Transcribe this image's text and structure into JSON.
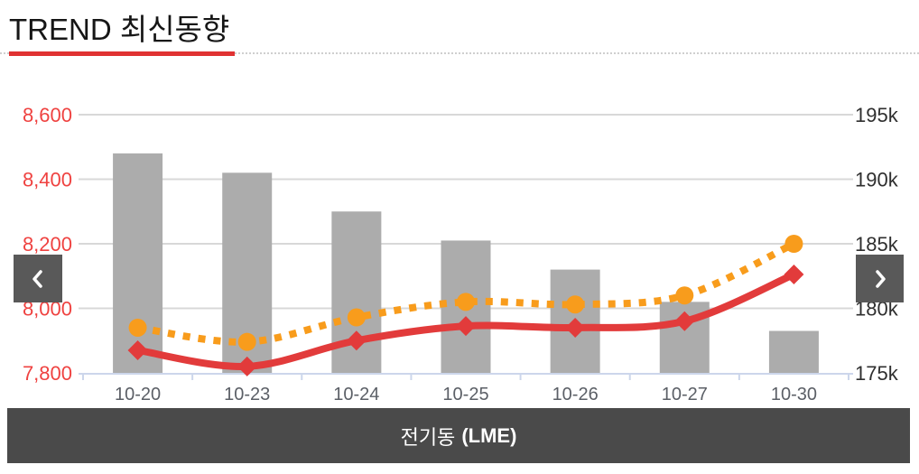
{
  "header": {
    "title": "TREND 최신동향",
    "accent_color": "#e03232"
  },
  "nav": {
    "prev_icon": "chevron-left",
    "next_icon": "chevron-right"
  },
  "footer": {
    "instrument": "전기동",
    "exchange": "(LME)",
    "bg_color": "#4a4a4a"
  },
  "chart_data": {
    "type": "combo",
    "title": "",
    "legend": "none",
    "grid": true,
    "grid_color": "#d8d8d8",
    "categories": [
      "10-20",
      "10-23",
      "10-24",
      "10-25",
      "10-26",
      "10-27",
      "10-30"
    ],
    "x_axis": {
      "label_color": "#5b5f66",
      "line_color": "#ccd6eb"
    },
    "left_axis": {
      "min": 7800,
      "max": 8600,
      "tick_values": [
        7800,
        8000,
        8200,
        8400,
        8600
      ],
      "tick_labels": [
        "7,800",
        "8,000",
        "8,200",
        "8,400",
        "8,600"
      ],
      "label_color": "#ef4240"
    },
    "right_axis": {
      "min": 175000,
      "max": 195000,
      "tick_values": [
        175000,
        180000,
        185000,
        190000,
        195000
      ],
      "tick_labels": [
        "175k",
        "180k",
        "185k",
        "190k",
        "195k"
      ],
      "label_color": "#2f2f2f"
    },
    "series": [
      {
        "id": "volume-bars",
        "type": "bar",
        "axis": "left",
        "color": "#acacac",
        "values": [
          8480,
          8420,
          8300,
          8210,
          8120,
          8020,
          7930
        ]
      },
      {
        "id": "price-spline",
        "type": "spline",
        "axis": "left",
        "color": "#e23b3b",
        "marker": "diamond",
        "dashed": false,
        "values": [
          7870,
          7820,
          7900,
          7945,
          7940,
          7960,
          8105
        ]
      },
      {
        "id": "secondary-dotted-spline",
        "type": "spline",
        "axis": "right",
        "color": "#f89c1c",
        "marker": "circle",
        "dashed": true,
        "values": [
          178500,
          177400,
          179300,
          180500,
          180300,
          181000,
          185000
        ]
      }
    ]
  }
}
